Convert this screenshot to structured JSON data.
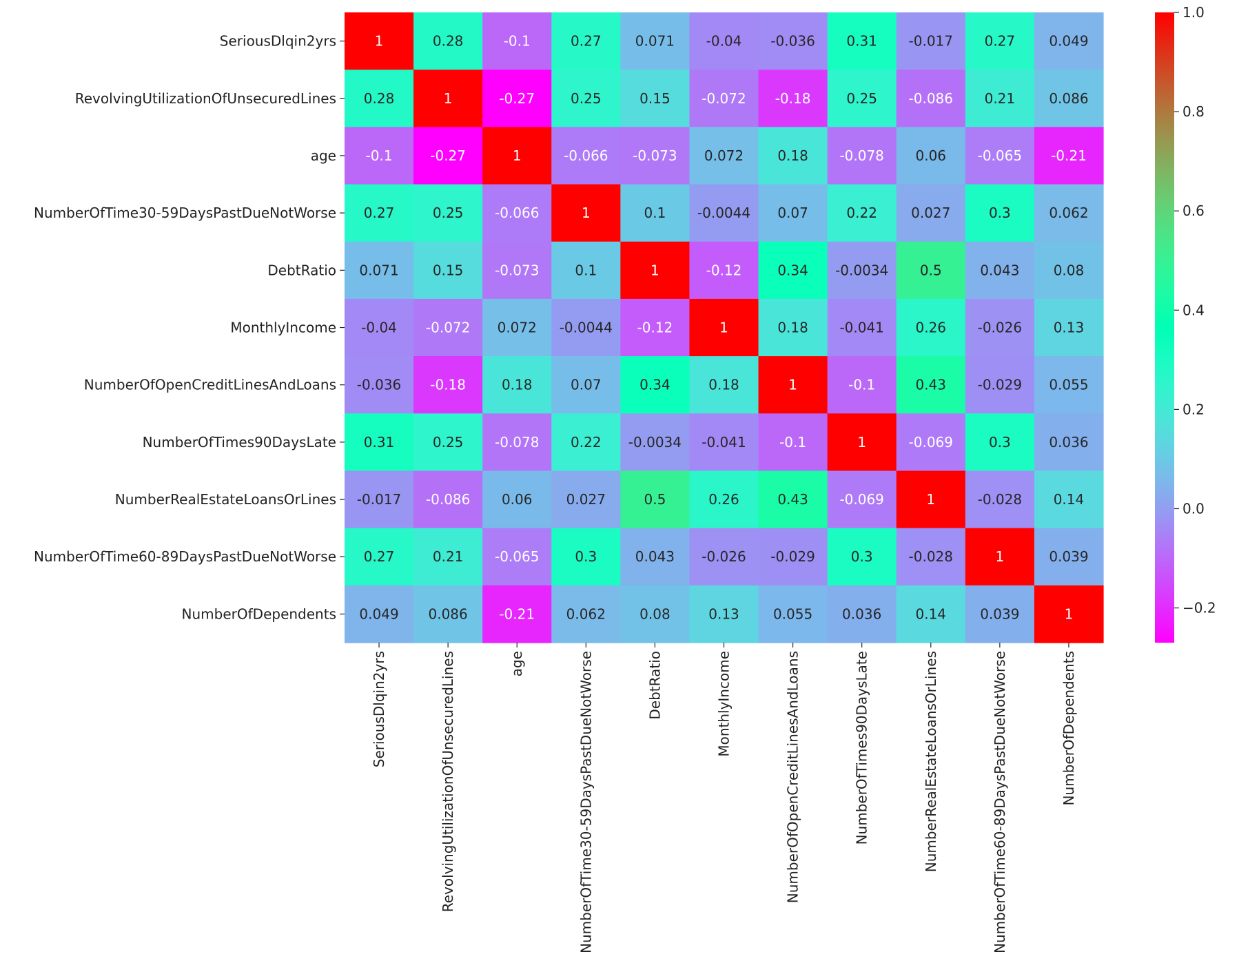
{
  "chart_data": {
    "type": "heatmap",
    "rows": [
      "SeriousDlqin2yrs",
      "RevolvingUtilizationOfUnsecuredLines",
      "age",
      "NumberOfTime30-59DaysPastDueNotWorse",
      "DebtRatio",
      "MonthlyIncome",
      "NumberOfOpenCreditLinesAndLoans",
      "NumberOfTimes90DaysLate",
      "NumberRealEstateLoansOrLines",
      "NumberOfTime60-89DaysPastDueNotWorse",
      "NumberOfDependents"
    ],
    "columns": [
      "SeriousDlqin2yrs",
      "RevolvingUtilizationOfUnsecuredLines",
      "age",
      "NumberOfTime30-59DaysPastDueNotWorse",
      "DebtRatio",
      "MonthlyIncome",
      "NumberOfOpenCreditLinesAndLoans",
      "NumberOfTimes90DaysLate",
      "NumberRealEstateLoansOrLines",
      "NumberOfTime60-89DaysPastDueNotWorse",
      "NumberOfDependents"
    ],
    "values": [
      [
        1,
        0.28,
        -0.1,
        0.27,
        0.071,
        -0.04,
        -0.036,
        0.31,
        -0.017,
        0.27,
        0.049
      ],
      [
        0.28,
        1,
        -0.27,
        0.25,
        0.15,
        -0.072,
        -0.18,
        0.25,
        -0.086,
        0.21,
        0.086
      ],
      [
        -0.1,
        -0.27,
        1,
        -0.066,
        -0.073,
        0.072,
        0.18,
        -0.078,
        0.06,
        -0.065,
        -0.21
      ],
      [
        0.27,
        0.25,
        -0.066,
        1,
        0.1,
        -0.0044,
        0.07,
        0.22,
        0.027,
        0.3,
        0.062
      ],
      [
        0.071,
        0.15,
        -0.073,
        0.1,
        1,
        -0.12,
        0.34,
        -0.0034,
        0.5,
        0.043,
        0.08
      ],
      [
        -0.04,
        -0.072,
        0.072,
        -0.0044,
        -0.12,
        1,
        0.18,
        -0.041,
        0.26,
        -0.026,
        0.13
      ],
      [
        -0.036,
        -0.18,
        0.18,
        0.07,
        0.34,
        0.18,
        1,
        -0.1,
        0.43,
        -0.029,
        0.055
      ],
      [
        0.31,
        0.25,
        -0.078,
        0.22,
        -0.0034,
        -0.041,
        -0.1,
        1,
        -0.069,
        0.3,
        0.036
      ],
      [
        -0.017,
        -0.086,
        0.06,
        0.027,
        0.5,
        0.26,
        0.43,
        -0.069,
        1,
        -0.028,
        0.14
      ],
      [
        0.27,
        0.21,
        -0.065,
        0.3,
        0.043,
        -0.026,
        -0.029,
        0.3,
        -0.028,
        1,
        0.039
      ],
      [
        0.049,
        0.086,
        -0.21,
        0.062,
        0.08,
        0.13,
        0.055,
        0.036,
        0.14,
        0.039,
        1
      ]
    ],
    "labels": [
      [
        "1",
        "0.28",
        "-0.1",
        "0.27",
        "0.071",
        "-0.04",
        "-0.036",
        "0.31",
        "-0.017",
        "0.27",
        "0.049"
      ],
      [
        "0.28",
        "1",
        "-0.27",
        "0.25",
        "0.15",
        "-0.072",
        "-0.18",
        "0.25",
        "-0.086",
        "0.21",
        "0.086"
      ],
      [
        "-0.1",
        "-0.27",
        "1",
        "-0.066",
        "-0.073",
        "0.072",
        "0.18",
        "-0.078",
        "0.06",
        "-0.065",
        "-0.21"
      ],
      [
        "0.27",
        "0.25",
        "-0.066",
        "1",
        "0.1",
        "-0.0044",
        "0.07",
        "0.22",
        "0.027",
        "0.3",
        "0.062"
      ],
      [
        "0.071",
        "0.15",
        "-0.073",
        "0.1",
        "1",
        "-0.12",
        "0.34",
        "-0.0034",
        "0.5",
        "0.043",
        "0.08"
      ],
      [
        "-0.04",
        "-0.072",
        "0.072",
        "-0.0044",
        "-0.12",
        "1",
        "0.18",
        "-0.041",
        "0.26",
        "-0.026",
        "0.13"
      ],
      [
        "-0.036",
        "-0.18",
        "0.18",
        "0.07",
        "0.34",
        "0.18",
        "1",
        "-0.1",
        "0.43",
        "-0.029",
        "0.055"
      ],
      [
        "0.31",
        "0.25",
        "-0.078",
        "0.22",
        "-0.0034",
        "-0.041",
        "-0.1",
        "1",
        "-0.069",
        "0.3",
        "0.036"
      ],
      [
        "-0.017",
        "-0.086",
        "0.06",
        "0.027",
        "0.5",
        "0.26",
        "0.43",
        "-0.069",
        "1",
        "-0.028",
        "0.14"
      ],
      [
        "0.27",
        "0.21",
        "-0.065",
        "0.3",
        "0.043",
        "-0.026",
        "-0.029",
        "0.3",
        "-0.028",
        "1",
        "0.039"
      ],
      [
        "0.049",
        "0.086",
        "-0.21",
        "0.062",
        "0.08",
        "0.13",
        "0.055",
        "0.036",
        "0.14",
        "0.039",
        "1"
      ]
    ],
    "colormap": "rainbow",
    "vmin": -0.27,
    "vmax": 1.0,
    "colorbar_ticks": [
      -0.2,
      0.0,
      0.2,
      0.4,
      0.6,
      0.8,
      1.0
    ],
    "colorbar_tick_labels": [
      "−0.2",
      "0.0",
      "0.2",
      "0.4",
      "0.6",
      "0.8",
      "1.0"
    ],
    "colorbar_placement": "right",
    "title": "",
    "xlabel": "",
    "ylabel": ""
  }
}
